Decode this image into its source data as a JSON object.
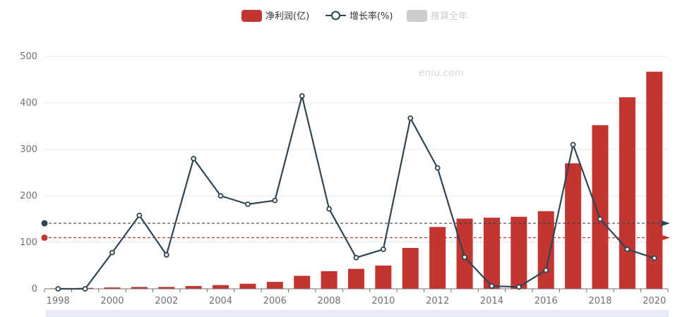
{
  "watermark": "eniu.com",
  "legend": [
    {
      "label": "净利润(亿)",
      "color": "#c23531",
      "shape": "bar",
      "enabled": true
    },
    {
      "label": "增长率(%)",
      "color": "#2f4554",
      "shape": "line",
      "enabled": true
    },
    {
      "label": "推算全年",
      "color": "#cccccc",
      "shape": "bar",
      "enabled": false
    }
  ],
  "chart_data": {
    "type": "bar",
    "categories": [
      "1998",
      "1999",
      "2000",
      "2001",
      "2002",
      "2003",
      "2004",
      "2005",
      "2006",
      "2007",
      "2008",
      "2009",
      "2010",
      "2011",
      "2012",
      "2013",
      "2014",
      "2015",
      "2016",
      "2017",
      "2018",
      "2019",
      "2020"
    ],
    "x_tick_labels": [
      "1998",
      "2000",
      "2002",
      "2004",
      "2006",
      "2008",
      "2010",
      "2012",
      "2014",
      "2016",
      "2018",
      "2020"
    ],
    "ylim": [
      0,
      500
    ],
    "y_ticks": [
      0,
      100,
      200,
      300,
      400,
      500
    ],
    "grid": true,
    "legend_position": "top-center",
    "series": [
      {
        "name": "净利润(亿)",
        "type": "bar",
        "color": "#c23531",
        "values": [
          1,
          2,
          3,
          4,
          4,
          6,
          8,
          11,
          15,
          28,
          38,
          43,
          50,
          88,
          133,
          151,
          153,
          155,
          167,
          270,
          352,
          412,
          467
        ]
      },
      {
        "name": "增长率(%)",
        "type": "line",
        "color": "#2f4554",
        "values": [
          0,
          0,
          78,
          158,
          73,
          280,
          200,
          182,
          190,
          415,
          172,
          67,
          85,
          367,
          260,
          68,
          6,
          4,
          40,
          310,
          150,
          85,
          66
        ]
      }
    ],
    "markLines": [
      {
        "series": "增长率(%)",
        "type": "average",
        "value": 141,
        "color": "#2f4554"
      },
      {
        "series": "净利润(亿)",
        "type": "average",
        "value": 110,
        "color": "#c23531"
      }
    ]
  }
}
